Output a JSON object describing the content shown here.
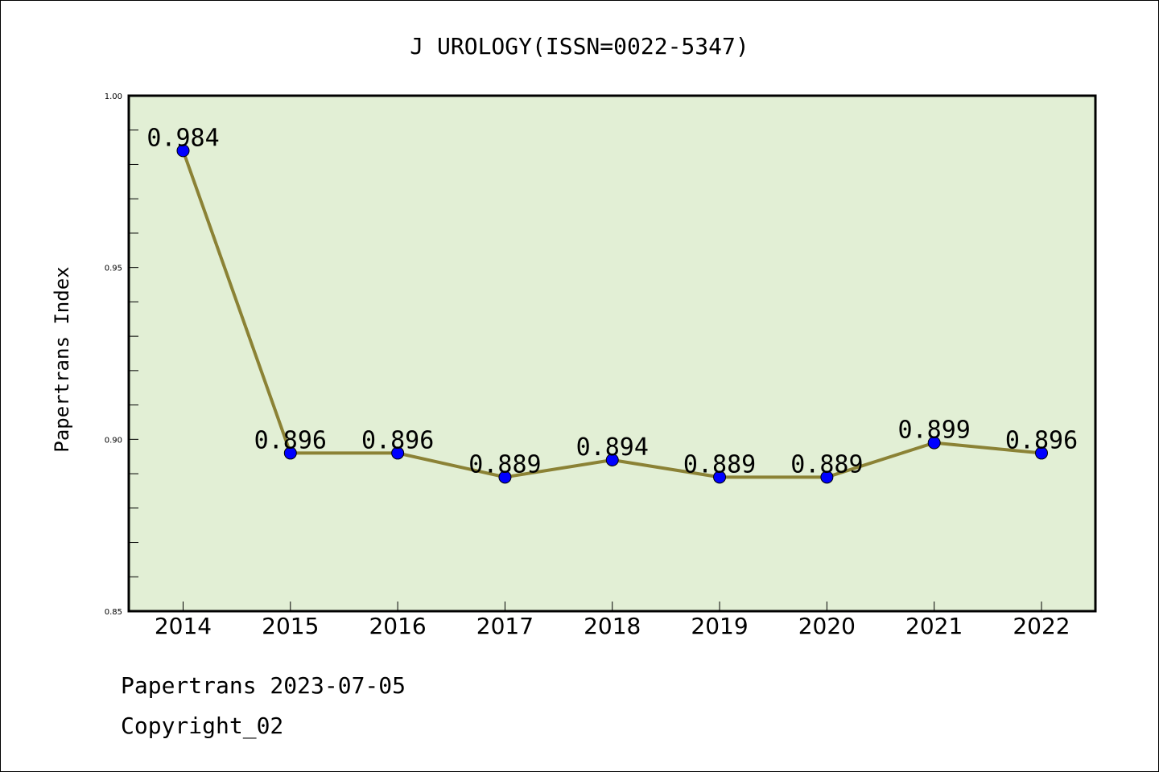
{
  "chart_data": {
    "type": "line",
    "title": "J UROLOGY(ISSN=0022-5347)",
    "xlabel": "",
    "ylabel": "Papertrans Index",
    "categories": [
      "2014",
      "2015",
      "2016",
      "2017",
      "2018",
      "2019",
      "2020",
      "2021",
      "2022"
    ],
    "series": [
      {
        "values": [
          0.984,
          0.896,
          0.896,
          0.889,
          0.894,
          0.889,
          0.889,
          0.899,
          0.896
        ]
      }
    ],
    "data_labels": [
      "0.984",
      "0.896",
      "0.896",
      "0.889",
      "0.894",
      "0.889",
      "0.889",
      "0.899",
      "0.896"
    ],
    "ylim": [
      0.85,
      1.0
    ],
    "yticks": [
      "0.85",
      "0.90",
      "0.95",
      "1.00"
    ],
    "grid": false,
    "colors": {
      "plot_background": "#e2efd5",
      "line": "#8b8235",
      "marker": "#0000ff"
    }
  },
  "footer": {
    "line1": "Papertrans 2023-07-05",
    "line2": "Copyright_02"
  }
}
